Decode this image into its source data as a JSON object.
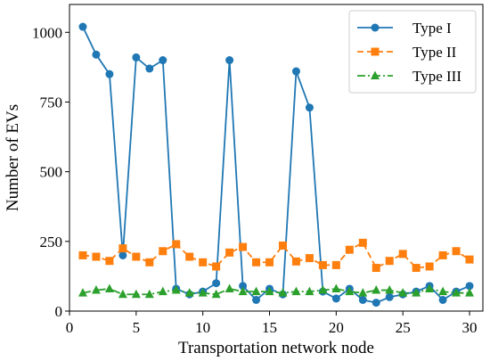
{
  "chart_data": {
    "type": "line",
    "title": "",
    "xlabel": "Transportation network node",
    "ylabel": "Number of EVs",
    "xlim": [
      0,
      31
    ],
    "ylim": [
      0,
      1100
    ],
    "xticks": [
      0,
      5,
      10,
      15,
      20,
      25,
      30
    ],
    "yticks": [
      0,
      250,
      500,
      750,
      1000
    ],
    "grid": false,
    "legend_position": "top-right",
    "x": [
      1,
      2,
      3,
      4,
      5,
      6,
      7,
      8,
      9,
      10,
      11,
      12,
      13,
      14,
      15,
      16,
      17,
      18,
      19,
      20,
      21,
      22,
      23,
      24,
      25,
      26,
      27,
      28,
      29,
      30
    ],
    "series": [
      {
        "name": "Type I",
        "color": "#1f77b4",
        "line_style": "solid",
        "marker": "circle",
        "values": [
          1020,
          920,
          850,
          200,
          910,
          870,
          900,
          80,
          60,
          70,
          100,
          900,
          90,
          40,
          80,
          60,
          860,
          730,
          70,
          45,
          80,
          40,
          30,
          50,
          60,
          70,
          90,
          40,
          70,
          90
        ]
      },
      {
        "name": "Type II",
        "color": "#ff7f0e",
        "line_style": "dashed",
        "marker": "square",
        "values": [
          200,
          195,
          180,
          225,
          195,
          175,
          215,
          240,
          195,
          175,
          160,
          210,
          230,
          175,
          175,
          235,
          178,
          190,
          165,
          165,
          220,
          245,
          155,
          180,
          205,
          155,
          160,
          200,
          215,
          185
        ]
      },
      {
        "name": "Type III",
        "color": "#2ca02c",
        "line_style": "dashdot",
        "marker": "triangle",
        "values": [
          65,
          75,
          80,
          60,
          60,
          60,
          70,
          75,
          65,
          65,
          60,
          80,
          70,
          70,
          70,
          65,
          70,
          70,
          75,
          80,
          70,
          65,
          75,
          75,
          65,
          65,
          80,
          70,
          65,
          65
        ]
      }
    ]
  }
}
